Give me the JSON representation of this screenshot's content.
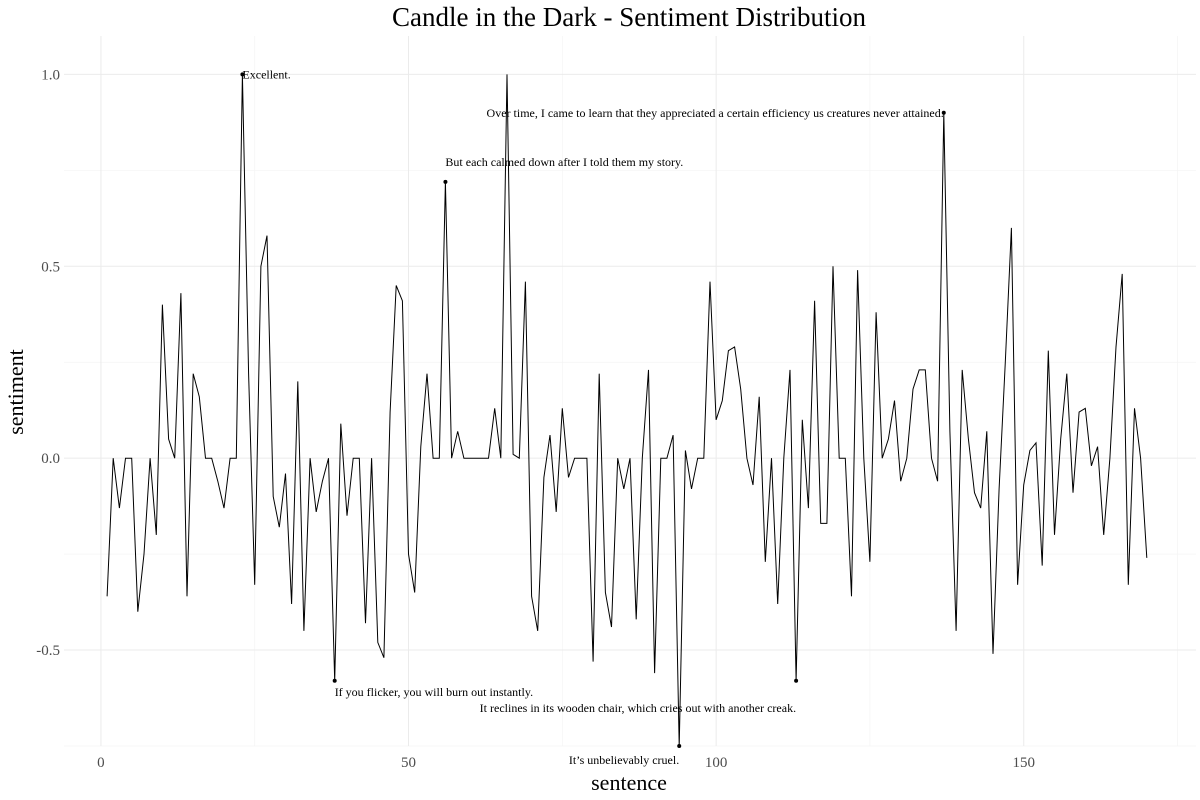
{
  "chart_data": {
    "type": "line",
    "title": "Candle in the Dark - Sentiment Distribution",
    "xlabel": "sentence",
    "ylabel": "sentiment",
    "xlim": [
      -6,
      178
    ],
    "ylim": [
      -0.75,
      1.1
    ],
    "x_ticks": [
      0,
      50,
      100,
      150
    ],
    "x_tick_labels": [
      "0",
      "50",
      "100",
      "150"
    ],
    "y_ticks": [
      -0.5,
      0,
      0.5,
      1
    ],
    "y_tick_labels": [
      "-0.5",
      "0.0",
      "0.5",
      "1.0"
    ],
    "grid": true,
    "series": [
      {
        "values": [
          -0.36,
          0.0,
          -0.13,
          0.0,
          0.0,
          -0.4,
          -0.25,
          0.0,
          -0.2,
          0.4,
          0.05,
          0.0,
          0.43,
          -0.36,
          0.22,
          0.16,
          0.0,
          0.0,
          -0.06,
          -0.13,
          0.0,
          0.0,
          1.0,
          0.22,
          -0.33,
          0.5,
          0.58,
          -0.1,
          -0.18,
          -0.04,
          -0.38,
          0.2,
          -0.45,
          0.0,
          -0.14,
          -0.06,
          0.0,
          -0.58,
          0.09,
          -0.15,
          0.0,
          0.0,
          -0.43,
          0.0,
          -0.48,
          -0.52,
          0.12,
          0.45,
          0.41,
          -0.25,
          -0.35,
          0.03,
          0.22,
          0.0,
          0.0,
          0.72,
          0.0,
          0.07,
          0.0,
          0.0,
          0.0,
          0.0,
          0.0,
          0.13,
          0.0,
          1.0,
          0.01,
          0.0,
          0.46,
          -0.36,
          -0.45,
          -0.05,
          0.06,
          -0.14,
          0.13,
          -0.05,
          0.0,
          0.0,
          0.0,
          -0.53,
          0.22,
          -0.35,
          -0.44,
          0.0,
          -0.08,
          0.0,
          -0.42,
          0.0,
          0.23,
          -0.56,
          0.0,
          0.0,
          0.06,
          -0.75,
          0.02,
          -0.08,
          0.0,
          0.0,
          0.46,
          0.1,
          0.15,
          0.28,
          0.29,
          0.18,
          0.0,
          -0.07,
          0.16,
          -0.27,
          0.0,
          -0.38,
          0.0,
          0.23,
          -0.58,
          0.1,
          -0.13,
          0.41,
          -0.17,
          -0.17,
          0.5,
          0.0,
          0.0,
          -0.36,
          0.49,
          0.0,
          -0.27,
          0.38,
          0.0,
          0.05,
          0.15,
          -0.06,
          0.0,
          0.18,
          0.23,
          0.23,
          0.0,
          -0.06,
          0.9,
          0.07,
          -0.45,
          0.23,
          0.05,
          -0.09,
          -0.13,
          0.07,
          -0.51,
          -0.08,
          0.25,
          0.6,
          -0.33,
          -0.07,
          0.02,
          0.04,
          -0.28,
          0.28,
          -0.2,
          0.05,
          0.22,
          -0.09,
          0.12,
          0.13,
          -0.02,
          0.03,
          -0.2,
          0.0,
          0.29,
          0.48,
          -0.33,
          0.13,
          0.0,
          -0.26
        ]
      }
    ],
    "annotations": [
      {
        "x": 23,
        "y": 1.0,
        "text": "Excellent.",
        "anchor": "start",
        "dx": 0,
        "dy": 0
      },
      {
        "x": 137,
        "y": 0.9,
        "text": "Over time, I came to learn that they appreciated a certain efficiency us creatures never attained.",
        "anchor": "end",
        "dx": 0,
        "dy": 0
      },
      {
        "x": 56,
        "y": 0.72,
        "text": "But each calmed down after I told them my story.",
        "anchor": "start",
        "dx": 0,
        "dy": -20
      },
      {
        "x": 38,
        "y": -0.58,
        "text": "If you flicker, you will burn out instantly.",
        "anchor": "start",
        "dx": 0,
        "dy": 11
      },
      {
        "x": 113,
        "y": -0.58,
        "text": "It reclines in its wooden chair, which cries out with another creak.",
        "anchor": "end",
        "dx": 0,
        "dy": 27
      },
      {
        "x": 94,
        "y": -0.75,
        "text": "It’s unbelievably cruel.",
        "anchor": "end",
        "dx": 0,
        "dy": 14
      }
    ]
  }
}
